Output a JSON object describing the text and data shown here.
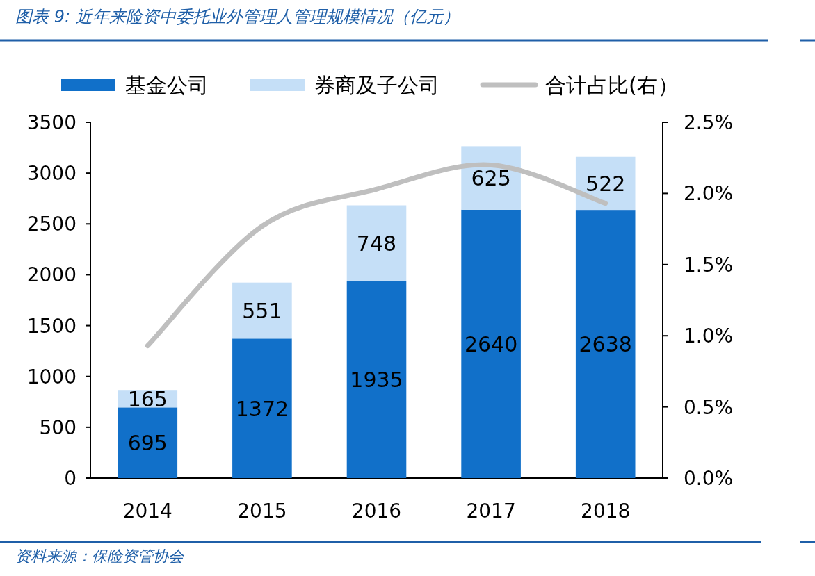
{
  "chart_data": {
    "type": "bar",
    "title": "图表 9:  近年来险资中委托业外管理人管理规模情况（亿元）",
    "annotations": [
      "资料来源：保险资管协会"
    ],
    "categories": [
      "2014",
      "2015",
      "2016",
      "2017",
      "2018"
    ],
    "stacked": true,
    "legend": "top",
    "series": [
      {
        "name": "基金公司",
        "color": "#1170c9",
        "values": [
          695,
          1372,
          1935,
          2640,
          2638
        ],
        "value_labels": [
          "695",
          "1372",
          "1935",
          "2640",
          "2638"
        ]
      },
      {
        "name": "券商及子公司",
        "color": "#c5dff7",
        "values": [
          165,
          551,
          748,
          625,
          522
        ],
        "value_labels": [
          "165",
          "551",
          "748",
          "625",
          "522"
        ]
      },
      {
        "name": "合计占比(右）",
        "type": "line",
        "axis": "y2",
        "color": "#bfbfbf",
        "values": [
          0.93,
          1.77,
          2.03,
          2.2,
          1.93
        ]
      }
    ],
    "ylim": [
      0,
      3500
    ],
    "yticks": [
      0,
      500,
      1000,
      1500,
      2000,
      2500,
      3000,
      3500
    ],
    "y2lim": [
      0,
      2.5
    ],
    "y2ticks": [
      {
        "value": 0,
        "label": "0.0%"
      },
      {
        "value": 0.5,
        "label": "0.5%"
      },
      {
        "value": 1,
        "label": "1.0%"
      },
      {
        "value": 1.5,
        "label": "1.5%"
      },
      {
        "value": 2,
        "label": "2.0%"
      },
      {
        "value": 2.5,
        "label": "2.5%"
      }
    ]
  }
}
